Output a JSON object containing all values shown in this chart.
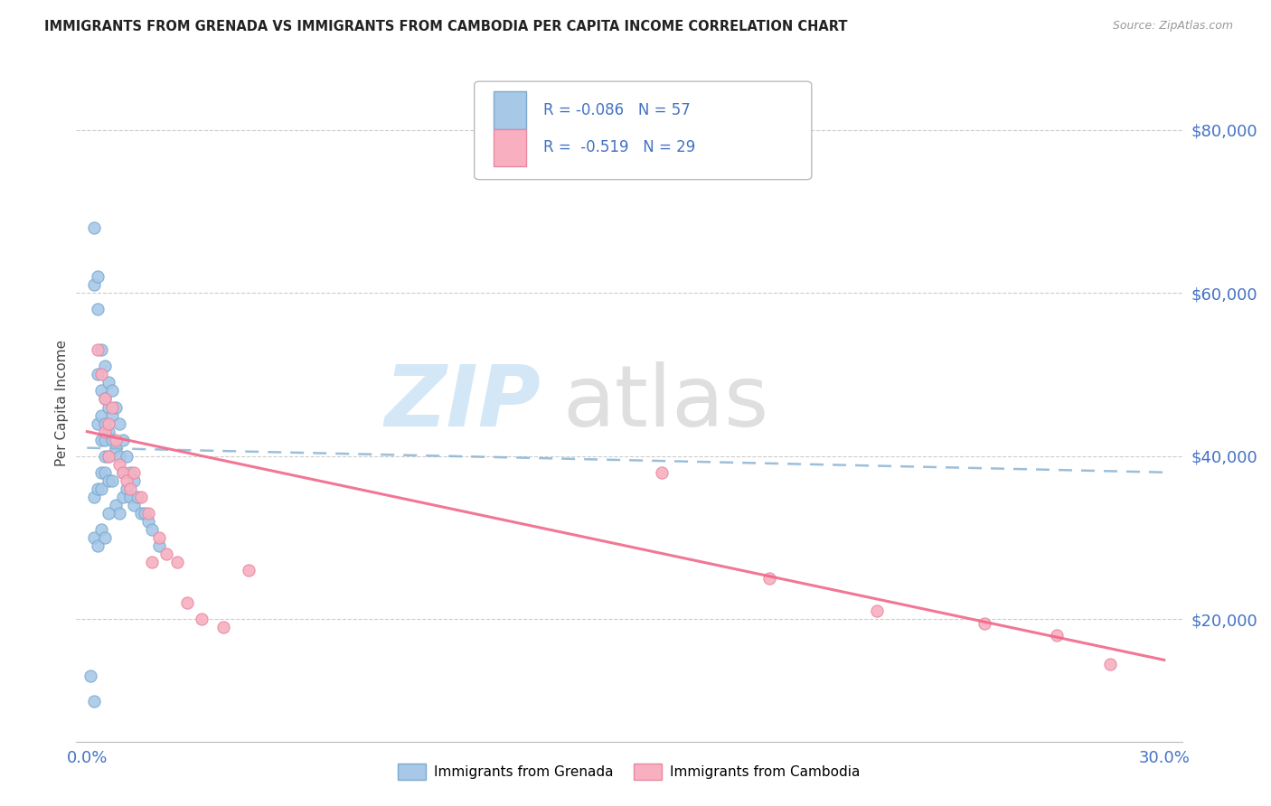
{
  "title": "IMMIGRANTS FROM GRENADA VS IMMIGRANTS FROM CAMBODIA PER CAPITA INCOME CORRELATION CHART",
  "source": "Source: ZipAtlas.com",
  "ylabel": "Per Capita Income",
  "ytick_labels": [
    "$20,000",
    "$40,000",
    "$60,000",
    "$80,000"
  ],
  "ytick_values": [
    20000,
    40000,
    60000,
    80000
  ],
  "xlim": [
    -0.003,
    0.305
  ],
  "ylim": [
    5000,
    88000
  ],
  "grenada_color": "#a8c8e8",
  "grenada_edge": "#7aaace",
  "cambodia_color": "#f8b0c0",
  "cambodia_edge": "#e888a0",
  "trendline_grenada_color": "#8ab4d4",
  "trendline_cambodia_color": "#f06888",
  "grenada_x": [
    0.001,
    0.002,
    0.002,
    0.002,
    0.002,
    0.003,
    0.003,
    0.003,
    0.003,
    0.003,
    0.004,
    0.004,
    0.004,
    0.004,
    0.004,
    0.004,
    0.005,
    0.005,
    0.005,
    0.005,
    0.005,
    0.005,
    0.006,
    0.006,
    0.006,
    0.006,
    0.006,
    0.007,
    0.007,
    0.007,
    0.007,
    0.008,
    0.008,
    0.008,
    0.009,
    0.009,
    0.009,
    0.01,
    0.01,
    0.01,
    0.011,
    0.011,
    0.012,
    0.012,
    0.013,
    0.013,
    0.014,
    0.015,
    0.016,
    0.017,
    0.018,
    0.02,
    0.002,
    0.003,
    0.004,
    0.005,
    0.006
  ],
  "grenada_y": [
    13000,
    68000,
    61000,
    35000,
    10000,
    62000,
    58000,
    50000,
    44000,
    36000,
    53000,
    48000,
    45000,
    42000,
    38000,
    36000,
    51000,
    47000,
    44000,
    42000,
    40000,
    38000,
    49000,
    46000,
    43000,
    40000,
    37000,
    48000,
    45000,
    42000,
    37000,
    46000,
    41000,
    34000,
    44000,
    40000,
    33000,
    42000,
    38000,
    35000,
    40000,
    36000,
    38000,
    35000,
    37000,
    34000,
    35000,
    33000,
    33000,
    32000,
    31000,
    29000,
    30000,
    29000,
    31000,
    30000,
    33000
  ],
  "cambodia_x": [
    0.003,
    0.004,
    0.005,
    0.005,
    0.006,
    0.006,
    0.007,
    0.008,
    0.009,
    0.01,
    0.011,
    0.012,
    0.013,
    0.015,
    0.017,
    0.018,
    0.02,
    0.022,
    0.025,
    0.028,
    0.032,
    0.038,
    0.045,
    0.16,
    0.19,
    0.22,
    0.25,
    0.27,
    0.285
  ],
  "cambodia_y": [
    53000,
    50000,
    47000,
    43000,
    44000,
    40000,
    46000,
    42000,
    39000,
    38000,
    37000,
    36000,
    38000,
    35000,
    33000,
    27000,
    30000,
    28000,
    27000,
    22000,
    20000,
    19000,
    26000,
    38000,
    25000,
    21000,
    19500,
    18000,
    14500
  ],
  "legend_text1": "R = -0.086   N = 57",
  "legend_text2": "R =  -0.519   N = 29",
  "watermark_zip": "ZIP",
  "watermark_atlas": "atlas"
}
